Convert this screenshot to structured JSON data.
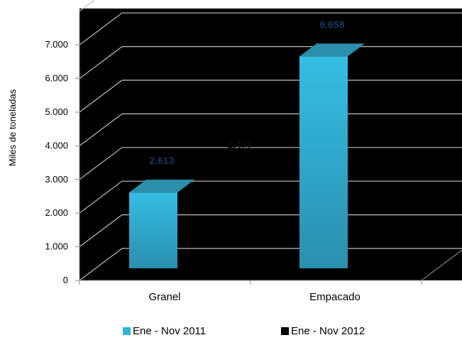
{
  "chart_data": {
    "type": "bar",
    "ylabel": "Miles de toneladas",
    "categories": [
      "Granel",
      "Empacado"
    ],
    "ylim": [
      0,
      8000
    ],
    "yticks": [
      0,
      1000,
      2000,
      3000,
      4000,
      5000,
      6000,
      7000
    ],
    "ytick_labels": [
      "0",
      "1.000",
      "2.000",
      "3.000",
      "4.000",
      "5.000",
      "6.000",
      "7.000"
    ],
    "series": [
      {
        "name": "Ene - Nov 2011",
        "values": [
          2613,
          6658
        ],
        "data_labels": [
          "2.613",
          "6.658"
        ],
        "color": "#31b4d8"
      },
      {
        "name": "Ene - Nov 2012",
        "values": [
          null,
          null
        ],
        "data_labels": [
          "2.477",
          ""
        ],
        "color": "#000000"
      }
    ],
    "grid": true,
    "legend_position": "bottom",
    "plot_background": "#000000",
    "label_color": "#17375e"
  }
}
